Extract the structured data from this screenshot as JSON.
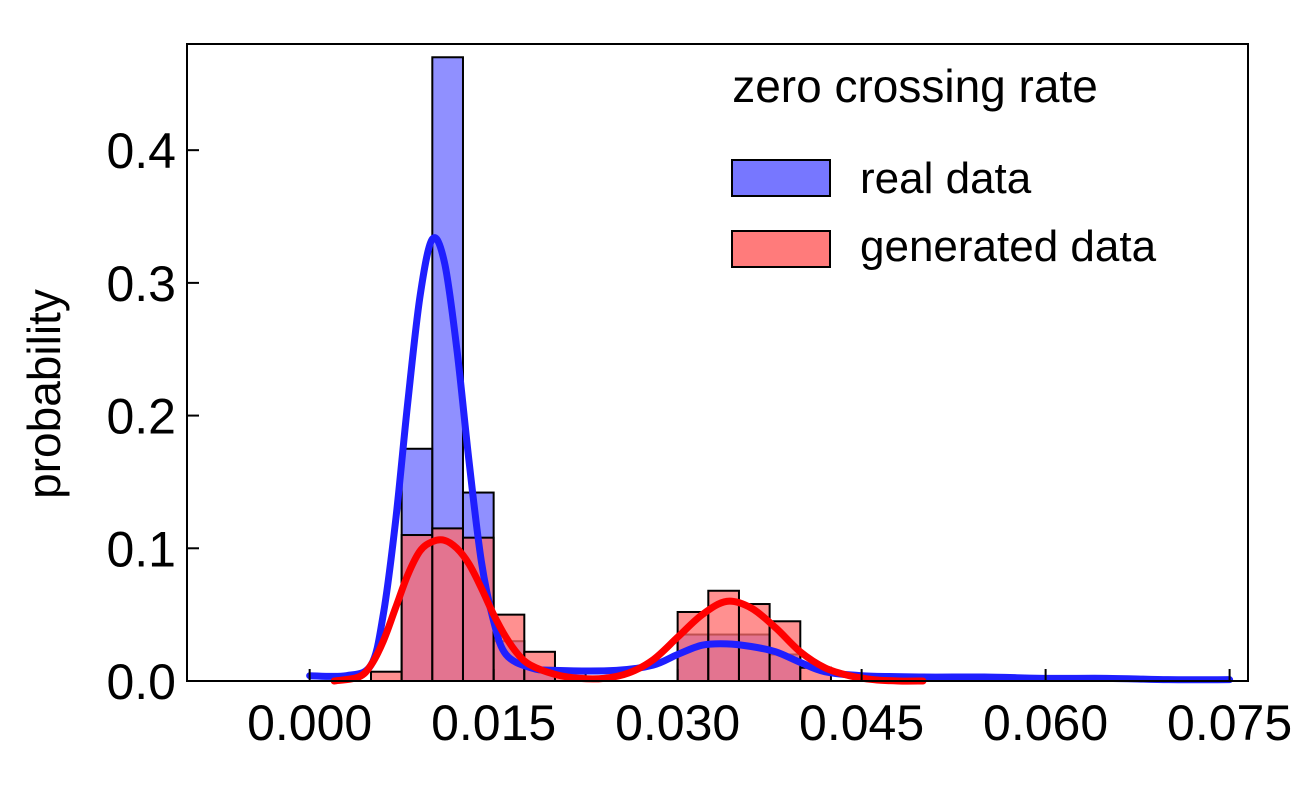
{
  "chart_data": {
    "type": "bar",
    "title": "zero crossing rate",
    "xlabel": "",
    "ylabel": "probability",
    "xlim": [
      -0.01,
      0.0765
    ],
    "ylim": [
      0.0,
      0.48
    ],
    "xticks": [
      0.0,
      0.015,
      0.03,
      0.045,
      0.06,
      0.075
    ],
    "xtick_labels": [
      "0.000",
      "0.015",
      "0.030",
      "0.045",
      "0.060",
      "0.075"
    ],
    "yticks": [
      0.0,
      0.1,
      0.2,
      0.3,
      0.4
    ],
    "ytick_labels": [
      "0.0",
      "0.1",
      "0.2",
      "0.3",
      "0.4"
    ],
    "grid": false,
    "legend_position": "top-right",
    "bin_width": 0.0025,
    "series": [
      {
        "name": "real data",
        "color": "#6b6bff",
        "line_color": "#1f1fff",
        "bins": [
          {
            "x0": 0.0075,
            "height": 0.175
          },
          {
            "x0": 0.01,
            "height": 0.47
          },
          {
            "x0": 0.0125,
            "height": 0.142
          },
          {
            "x0": 0.015,
            "height": 0.03
          },
          {
            "x0": 0.0175,
            "height": 0.01
          },
          {
            "x0": 0.03,
            "height": 0.035
          },
          {
            "x0": 0.0325,
            "height": 0.035
          },
          {
            "x0": 0.035,
            "height": 0.035
          },
          {
            "x0": 0.0375,
            "height": 0.02
          }
        ],
        "kde": [
          [
            0.0,
            0.004
          ],
          [
            0.003,
            0.004
          ],
          [
            0.005,
            0.012
          ],
          [
            0.006,
            0.05
          ],
          [
            0.007,
            0.12
          ],
          [
            0.008,
            0.21
          ],
          [
            0.009,
            0.29
          ],
          [
            0.01,
            0.333
          ],
          [
            0.011,
            0.315
          ],
          [
            0.012,
            0.25
          ],
          [
            0.013,
            0.165
          ],
          [
            0.014,
            0.09
          ],
          [
            0.015,
            0.045
          ],
          [
            0.016,
            0.02
          ],
          [
            0.018,
            0.01
          ],
          [
            0.02,
            0.008
          ],
          [
            0.025,
            0.008
          ],
          [
            0.028,
            0.012
          ],
          [
            0.03,
            0.02
          ],
          [
            0.032,
            0.027
          ],
          [
            0.034,
            0.028
          ],
          [
            0.036,
            0.026
          ],
          [
            0.038,
            0.022
          ],
          [
            0.04,
            0.014
          ],
          [
            0.042,
            0.007
          ],
          [
            0.045,
            0.004
          ],
          [
            0.05,
            0.003
          ],
          [
            0.055,
            0.003
          ],
          [
            0.06,
            0.002
          ],
          [
            0.065,
            0.002
          ],
          [
            0.07,
            0.001
          ],
          [
            0.075,
            0.001
          ]
        ]
      },
      {
        "name": "generated data",
        "color": "#ff6b6b",
        "line_color": "#ff0000",
        "bins": [
          {
            "x0": 0.005,
            "height": 0.007
          },
          {
            "x0": 0.0075,
            "height": 0.11
          },
          {
            "x0": 0.01,
            "height": 0.115
          },
          {
            "x0": 0.0125,
            "height": 0.108
          },
          {
            "x0": 0.015,
            "height": 0.05
          },
          {
            "x0": 0.0175,
            "height": 0.022
          },
          {
            "x0": 0.02,
            "height": 0.008
          },
          {
            "x0": 0.03,
            "height": 0.052
          },
          {
            "x0": 0.0325,
            "height": 0.068
          },
          {
            "x0": 0.035,
            "height": 0.058
          },
          {
            "x0": 0.0375,
            "height": 0.045
          },
          {
            "x0": 0.04,
            "height": 0.01
          }
        ],
        "kde": [
          [
            0.002,
            0.0
          ],
          [
            0.004,
            0.003
          ],
          [
            0.005,
            0.012
          ],
          [
            0.006,
            0.03
          ],
          [
            0.007,
            0.055
          ],
          [
            0.008,
            0.08
          ],
          [
            0.009,
            0.098
          ],
          [
            0.01,
            0.105
          ],
          [
            0.011,
            0.106
          ],
          [
            0.012,
            0.1
          ],
          [
            0.013,
            0.088
          ],
          [
            0.014,
            0.07
          ],
          [
            0.015,
            0.05
          ],
          [
            0.016,
            0.033
          ],
          [
            0.017,
            0.02
          ],
          [
            0.018,
            0.012
          ],
          [
            0.02,
            0.005
          ],
          [
            0.022,
            0.002
          ],
          [
            0.024,
            0.002
          ],
          [
            0.026,
            0.006
          ],
          [
            0.028,
            0.016
          ],
          [
            0.03,
            0.033
          ],
          [
            0.032,
            0.05
          ],
          [
            0.034,
            0.06
          ],
          [
            0.036,
            0.055
          ],
          [
            0.038,
            0.04
          ],
          [
            0.04,
            0.022
          ],
          [
            0.042,
            0.01
          ],
          [
            0.044,
            0.004
          ],
          [
            0.046,
            0.001
          ],
          [
            0.048,
            0.0
          ],
          [
            0.05,
            0.0
          ]
        ]
      }
    ]
  }
}
